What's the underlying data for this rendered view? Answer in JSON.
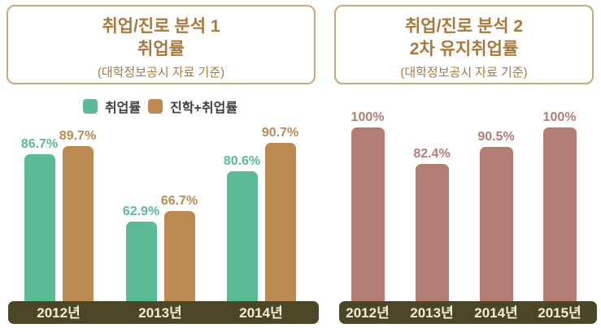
{
  "charts": [
    {
      "header": {
        "line1": "취업/진로 분석 1",
        "line2": "취업률",
        "line3": "(대학정보공시 자료 기준)"
      }
    },
    {
      "header": {
        "line1": "취업/진로 분석 2",
        "line2": "2차 유지취업률",
        "line3": "(대학정보공시 자료 기준)"
      }
    }
  ],
  "chart_data": [
    {
      "type": "bar",
      "title": "취업/진로 분석 1 취업률",
      "subtitle": "(대학정보공시 자료 기준)",
      "categories": [
        "2012년",
        "2013년",
        "2014년"
      ],
      "series": [
        {
          "name": "취업률",
          "color": "#5cba94",
          "values": [
            86.7,
            62.9,
            80.6
          ],
          "value_labels": [
            "86.7%",
            "62.9%",
            "80.6%"
          ]
        },
        {
          "name": "진학+취업률",
          "color": "#bd8a52",
          "values": [
            89.7,
            66.7,
            90.7
          ],
          "value_labels": [
            "89.7%",
            "66.7%",
            "90.7%"
          ]
        }
      ],
      "xlabel": "",
      "ylabel": "",
      "ylim": [
        35,
        95
      ],
      "legend_position": "top",
      "grid": false
    },
    {
      "type": "bar",
      "title": "취업/진로 분석 2 2차 유지취업률",
      "subtitle": "(대학정보공시 자료 기준)",
      "categories": [
        "2012년",
        "2013년",
        "2014년",
        "2015년"
      ],
      "series": [
        {
          "name": "2차 유지취업률",
          "color": "#b37d73",
          "values": [
            100,
            82.4,
            90.5,
            100
          ],
          "value_labels": [
            "100%",
            "82.4%",
            "90.5%",
            "100%"
          ]
        }
      ],
      "xlabel": "",
      "ylabel": "",
      "ylim": [
        16,
        100
      ],
      "legend_position": "none",
      "grid": false
    }
  ],
  "colors": {
    "title_text": "#a9793c",
    "box_border": "#c9a87c",
    "axis_bar": "#4a4626",
    "axis_label_text": "#f5efdb",
    "legend_text": "#3f3f3f",
    "series_green": "#5cba94",
    "series_tan": "#bd8a52",
    "series_rose": "#b37d73"
  }
}
